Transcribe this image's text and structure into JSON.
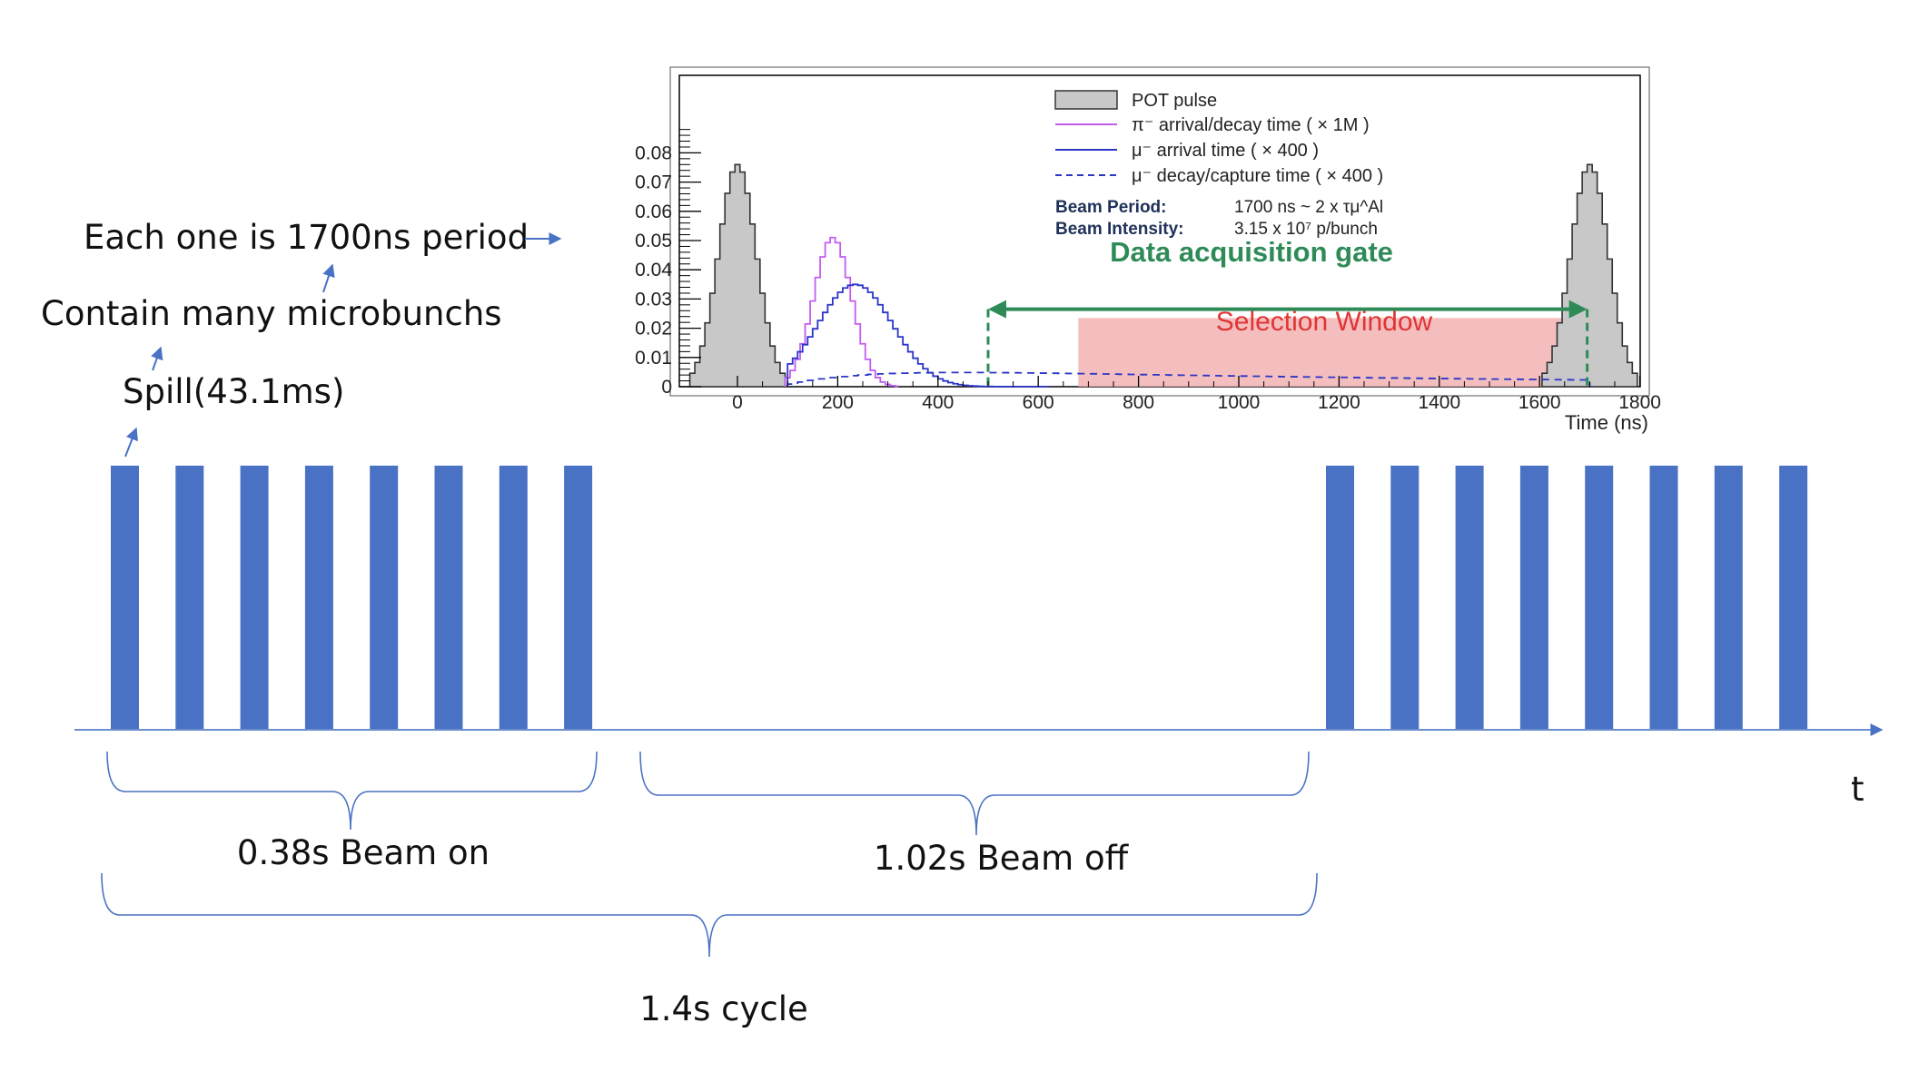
{
  "colors": {
    "spill": "#4a72c4",
    "axis": "#6b8fd0",
    "pot_fill": "#c8c8c8",
    "pi": "#c45cf0",
    "mu": "#2b35c8",
    "gate": "#2e8b57",
    "window": "#f2b3b3",
    "window_text": "#e03535"
  },
  "annotations": {
    "microbunch": "Each one is 1700ns period",
    "contain": "Contain many microbunchs",
    "spill": "Spill(43.1ms)"
  },
  "timeline": {
    "axis_label": "t",
    "beam_on": "0.38s Beam on",
    "beam_off": "1.02s Beam off",
    "cycle": "1.4s cycle",
    "spills_per_group": 8
  },
  "chart_data": {
    "type": "bar",
    "xlabel": "Time (ns)",
    "ylabel": "",
    "xlim": [
      -100,
      1800
    ],
    "ylim": [
      0,
      0.085
    ],
    "xticks": [
      0,
      200,
      400,
      600,
      800,
      1000,
      1200,
      1400,
      1600,
      1800
    ],
    "xtick_labels": [
      "0",
      "200",
      "400",
      "600",
      "800",
      "1000",
      "1200",
      "1400",
      "1600",
      "1800"
    ],
    "yticks": [
      0,
      0.01,
      0.02,
      0.03,
      0.04,
      0.05,
      0.06,
      0.07,
      0.08
    ],
    "ytick_labels": [
      "0",
      "0.01",
      "0.02",
      "0.03",
      "0.04",
      "0.05",
      "0.06",
      "0.07",
      "0.08"
    ],
    "legend": [
      {
        "label": "POT pulse",
        "style": "filled"
      },
      {
        "label": "π⁻ arrival/decay time ( × 1M )",
        "style": "pi"
      },
      {
        "label": "μ⁻ arrival time ( × 400 )",
        "style": "mu"
      },
      {
        "label": "μ⁻ decay/capture time ( × 400 )",
        "style": "mu-dashed"
      }
    ],
    "info": [
      {
        "key": "Beam Period:",
        "value": "1700 ns ~ 2 x τμ^Al"
      },
      {
        "key": "Beam Intensity:",
        "value": "3.15 x 10⁷ p/bunch"
      }
    ],
    "gate": {
      "label": "Data acquisition gate",
      "start": 500,
      "end": 1695
    },
    "selection_window": {
      "label": "Selection Window",
      "start": 680,
      "end": 1695,
      "height": 0.0235
    },
    "series": [
      {
        "name": "POT pulse",
        "style": "filled",
        "center": 0,
        "peak": 0.076,
        "sigma": 38,
        "range": [
          -95,
          95
        ]
      },
      {
        "name": "POT pulse",
        "style": "filled",
        "center": 1700,
        "peak": 0.076,
        "sigma": 38,
        "range": [
          1605,
          1795
        ]
      },
      {
        "name": "π⁻ arrival/decay time ( × 1M )",
        "style": "pi",
        "center": 190,
        "peak": 0.051,
        "sigma": 38,
        "range": [
          95,
          320
        ]
      },
      {
        "name": "μ⁻ arrival time ( × 400 )",
        "style": "mu",
        "center": 235,
        "peak": 0.035,
        "sigma": 75,
        "range": [
          100,
          620
        ]
      },
      {
        "name": "μ⁻ decay/capture time ( × 400 )",
        "style": "mu-dashed",
        "curve": "decay",
        "range": [
          100,
          1700
        ]
      }
    ]
  }
}
